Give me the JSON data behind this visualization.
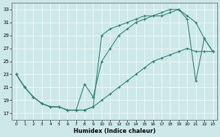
{
  "xlabel": "Humidex (Indice chaleur)",
  "bg_color": "#cce8e8",
  "grid_color": "#ffffff",
  "line_color": "#2e7d6e",
  "xlim": [
    -0.5,
    23.5
  ],
  "ylim": [
    16.0,
    34.0
  ],
  "xticks": [
    0,
    1,
    2,
    3,
    4,
    5,
    6,
    7,
    8,
    9,
    10,
    11,
    12,
    13,
    14,
    15,
    16,
    17,
    18,
    19,
    20,
    21,
    22,
    23
  ],
  "yticks": [
    17,
    19,
    21,
    23,
    25,
    27,
    29,
    31,
    33
  ],
  "line1_x": [
    0,
    1,
    2,
    3,
    4,
    5,
    6,
    7,
    8,
    9,
    10,
    11,
    12,
    13,
    14,
    15,
    16,
    17,
    18,
    19,
    20,
    21,
    22,
    23
  ],
  "line1_y": [
    23,
    21,
    19.5,
    18.5,
    18,
    18,
    17.5,
    17.5,
    17.5,
    18,
    19,
    20,
    21,
    22,
    23,
    24,
    25,
    25.5,
    26,
    26.5,
    27,
    26.5,
    26.5,
    26.5
  ],
  "line2_x": [
    0,
    1,
    2,
    3,
    4,
    5,
    6,
    7,
    8,
    9,
    10,
    11,
    12,
    13,
    14,
    15,
    16,
    17,
    18,
    19,
    20,
    21,
    22,
    23
  ],
  "line2_y": [
    23,
    21,
    19.5,
    18.5,
    18,
    18,
    17.5,
    17.5,
    21.5,
    19.5,
    25,
    27,
    29,
    30,
    31,
    31.5,
    32,
    32,
    32.5,
    33,
    32,
    31,
    28.5,
    26.5
  ],
  "line3_x": [
    0,
    1,
    2,
    3,
    4,
    5,
    6,
    7,
    8,
    9,
    10,
    11,
    12,
    13,
    14,
    15,
    16,
    17,
    18,
    19,
    20,
    21,
    22,
    23
  ],
  "line3_y": [
    23,
    21,
    19.5,
    18.5,
    18,
    18,
    17.5,
    17.5,
    17.5,
    18,
    29,
    30,
    30.5,
    31,
    31.5,
    32,
    32,
    32.5,
    33,
    33,
    31.5,
    22,
    28.5,
    26.5
  ]
}
